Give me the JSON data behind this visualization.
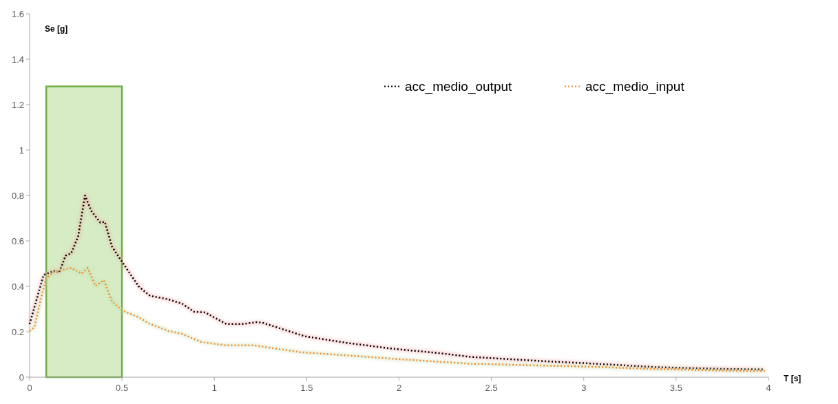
{
  "chart_data": {
    "type": "line",
    "xlabel": "T [s]",
    "ylabel": "Se [g]",
    "xlim": [
      0,
      4
    ],
    "xticks": [
      0,
      0.5,
      1,
      1.5,
      2,
      2.5,
      3,
      3.5,
      4
    ],
    "ylim": [
      0,
      1.6
    ],
    "yticks": [
      0,
      0.2,
      0.4,
      0.6,
      0.8,
      1,
      1.2,
      1.4,
      1.6
    ],
    "grid": false,
    "legend": "top right",
    "line_style": "dotted",
    "marker": "none",
    "bands": [
      {
        "axis": "x",
        "from": 0.09,
        "to": 0.5,
        "color": "#d6ecc4"
      }
    ],
    "series": [
      {
        "name": "acc_medio_output",
        "color": "#000000",
        "x": [
          0,
          0.076,
          0.14,
          0.16,
          0.195,
          0.225,
          0.263,
          0.3,
          0.333,
          0.383,
          0.407,
          0.446,
          0.502,
          0.59,
          0.652,
          0.75,
          0.827,
          0.89,
          0.95,
          1.065,
          1.15,
          1.228,
          1.26,
          1.34,
          1.49,
          1.716,
          1.967,
          2.216,
          2.39,
          2.455,
          2.77,
          3.02,
          3.39,
          3.77,
          3.98
        ],
        "values": [
          0.234,
          0.45,
          0.47,
          0.46,
          0.535,
          0.545,
          0.62,
          0.8,
          0.733,
          0.68,
          0.684,
          0.575,
          0.506,
          0.4,
          0.358,
          0.343,
          0.323,
          0.288,
          0.285,
          0.234,
          0.234,
          0.242,
          0.24,
          0.219,
          0.18,
          0.151,
          0.125,
          0.106,
          0.089,
          0.086,
          0.071,
          0.061,
          0.044,
          0.036,
          0.034
        ]
      },
      {
        "name": "acc_medio_input",
        "color": "#f28c28",
        "x": [
          0,
          0.026,
          0.058,
          0.089,
          0.127,
          0.17,
          0.226,
          0.282,
          0.314,
          0.357,
          0.402,
          0.446,
          0.502,
          0.59,
          0.652,
          0.75,
          0.827,
          0.928,
          1.065,
          1.215,
          1.466,
          1.716,
          1.967,
          2.39,
          2.455,
          2.77,
          3.02,
          3.39,
          3.77,
          3.98
        ],
        "values": [
          0.204,
          0.22,
          0.333,
          0.432,
          0.462,
          0.471,
          0.481,
          0.456,
          0.481,
          0.402,
          0.427,
          0.333,
          0.293,
          0.264,
          0.234,
          0.204,
          0.19,
          0.155,
          0.14,
          0.14,
          0.11,
          0.096,
          0.081,
          0.059,
          0.058,
          0.051,
          0.046,
          0.036,
          0.029,
          0.027
        ]
      }
    ]
  }
}
